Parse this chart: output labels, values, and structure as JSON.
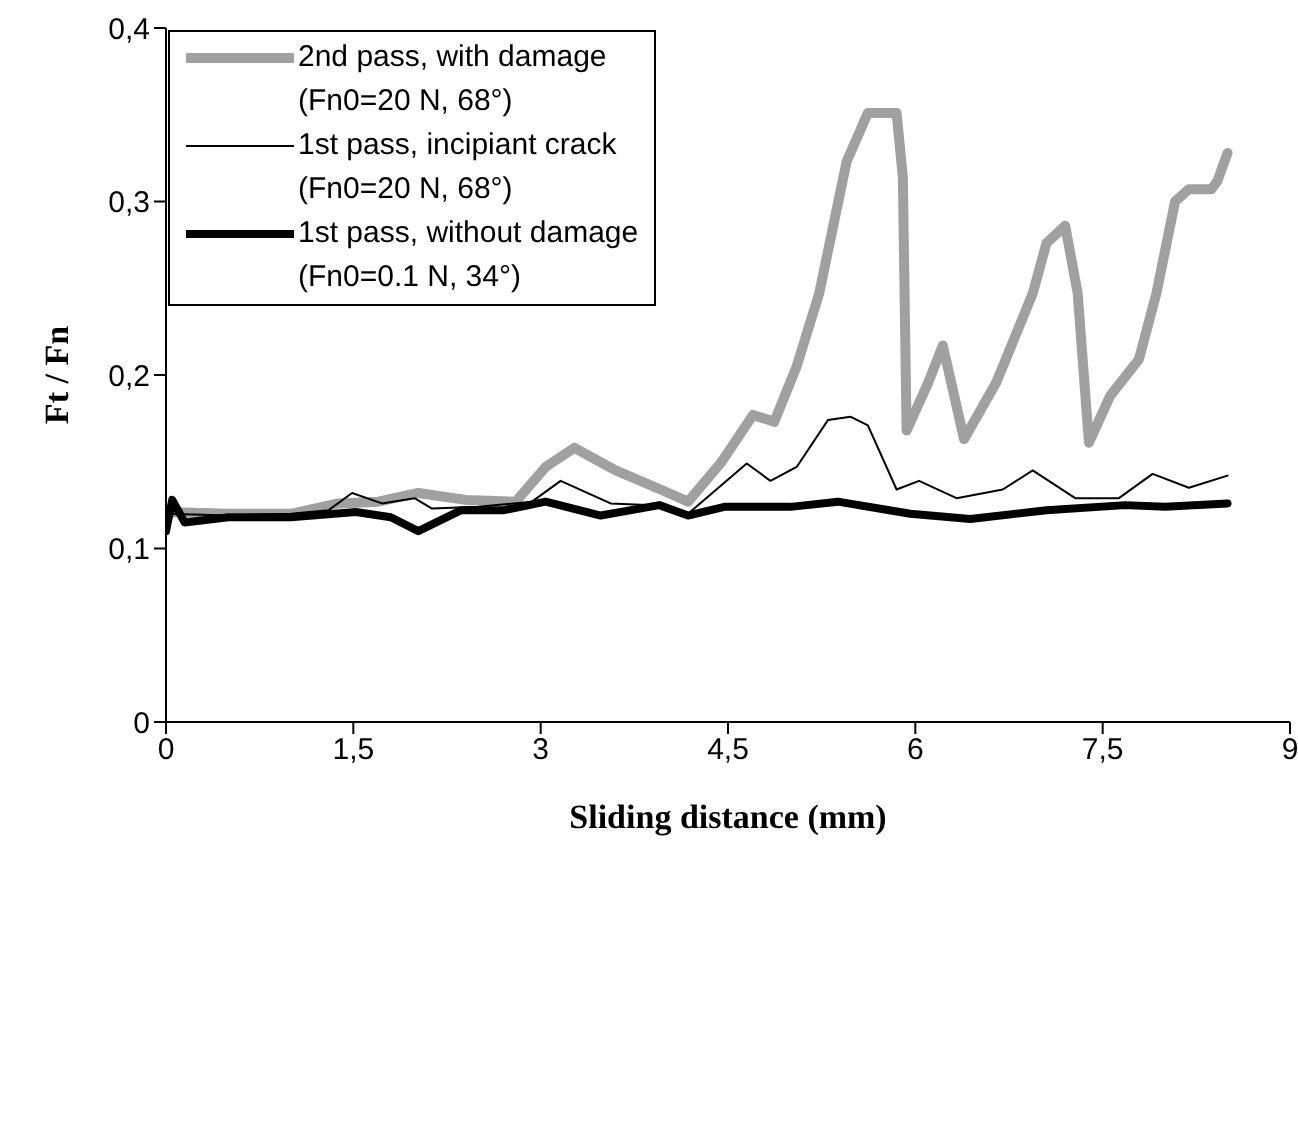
{
  "chart_data": {
    "type": "line",
    "xlabel": "Sliding distance (mm)",
    "ylabel": "Ft / Fn",
    "xlim": [
      0,
      9
    ],
    "xticks": [
      0,
      {
        "value": 1.5,
        "label": "1,5"
      },
      3,
      {
        "value": 4.5,
        "label": "4,5"
      },
      6,
      {
        "value": 7.5,
        "label": "7,5"
      },
      9
    ],
    "ylim": [
      0,
      0.4
    ],
    "yticks": [
      0,
      {
        "value": 0.1,
        "label": "0,1"
      },
      {
        "value": 0.2,
        "label": "0,2"
      },
      {
        "value": 0.3,
        "label": "0,3"
      },
      {
        "value": 0.4,
        "label": "0,4"
      }
    ],
    "grid": false,
    "legend": "top left",
    "marker": "none",
    "line_style": "solid",
    "series": [
      {
        "name": "2nd pass, with damage (Fn0=20 N, 68°)",
        "color": "#a0a0a0",
        "x": [
          0,
          0.5,
          1.0,
          1.38,
          1.7,
          2.02,
          2.4,
          2.8,
          3.04,
          3.27,
          3.6,
          3.96,
          4.18,
          4.45,
          4.7,
          4.87,
          5.05,
          5.23,
          5.45,
          5.62,
          5.85,
          5.9,
          5.93,
          6.1,
          6.22,
          6.39,
          6.65,
          6.94,
          7.05,
          7.2,
          7.3,
          7.39,
          7.56,
          7.79,
          7.93,
          8.08,
          8.19,
          8.37,
          8.42,
          8.5
        ],
        "values": [
          0.121,
          0.12,
          0.12,
          0.126,
          0.127,
          0.132,
          0.128,
          0.127,
          0.147,
          0.158,
          0.145,
          0.134,
          0.127,
          0.15,
          0.177,
          0.173,
          0.205,
          0.247,
          0.323,
          0.351,
          0.351,
          0.314,
          0.168,
          0.195,
          0.217,
          0.163,
          0.196,
          0.247,
          0.276,
          0.286,
          0.247,
          0.161,
          0.188,
          0.209,
          0.247,
          0.3,
          0.307,
          0.307,
          0.312,
          0.328
        ]
      },
      {
        "name": "1st pass, incipiant crack (Fn0=20 N, 68°)",
        "color": "#000000",
        "x": [
          0,
          0.5,
          1.0,
          1.3,
          1.49,
          1.73,
          1.99,
          2.13,
          2.5,
          2.93,
          3.16,
          3.56,
          3.9,
          4.18,
          4.65,
          4.84,
          5.05,
          5.3,
          5.48,
          5.62,
          5.85,
          6.03,
          6.33,
          6.7,
          6.94,
          7.28,
          7.63,
          7.9,
          8.19,
          8.5
        ],
        "values": [
          0.12,
          0.119,
          0.12,
          0.122,
          0.132,
          0.126,
          0.129,
          0.123,
          0.124,
          0.127,
          0.139,
          0.126,
          0.125,
          0.12,
          0.149,
          0.139,
          0.147,
          0.174,
          0.176,
          0.171,
          0.134,
          0.139,
          0.129,
          0.134,
          0.145,
          0.129,
          0.129,
          0.143,
          0.135,
          0.142
        ]
      },
      {
        "name": "1st pass, without damage (Fn0=0.1 N, 34°)",
        "color": "#000000",
        "x": [
          0,
          0.05,
          0.15,
          0.5,
          1.0,
          1.52,
          1.8,
          2.02,
          2.36,
          2.7,
          3.04,
          3.48,
          3.95,
          4.18,
          4.47,
          5.0,
          5.38,
          5.96,
          6.44,
          7.05,
          7.68,
          8.0,
          8.5
        ],
        "values": [
          0.11,
          0.128,
          0.115,
          0.118,
          0.118,
          0.121,
          0.118,
          0.11,
          0.122,
          0.122,
          0.127,
          0.119,
          0.125,
          0.119,
          0.124,
          0.124,
          0.127,
          0.12,
          0.117,
          0.122,
          0.125,
          0.124,
          0.126
        ]
      }
    ]
  }
}
